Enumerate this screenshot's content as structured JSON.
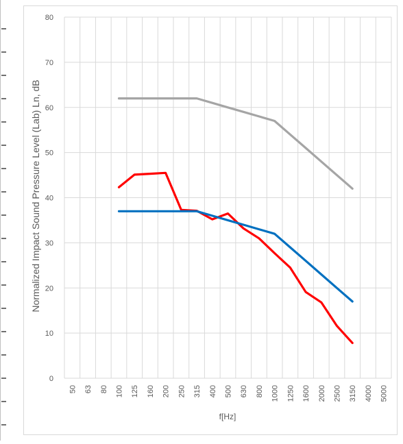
{
  "chart_data": {
    "type": "line",
    "title": "",
    "xlabel": "f[Hz]",
    "ylabel": "Normalized Impact Sound Pressure Level (Lab) Ln, dB",
    "categories": [
      "50",
      "63",
      "80",
      "100",
      "125",
      "160",
      "200",
      "250",
      "315",
      "400",
      "500",
      "630",
      "800",
      "1000",
      "1250",
      "1600",
      "2000",
      "2500",
      "3150",
      "4000",
      "5000"
    ],
    "ylim": [
      0,
      80
    ],
    "yticks": [
      0,
      10,
      20,
      30,
      40,
      50,
      60,
      70,
      80
    ],
    "grid": true,
    "legend": "none",
    "series": [
      {
        "color": "#A5A5A5",
        "values": [
          null,
          null,
          null,
          62,
          62,
          62,
          62,
          62,
          62,
          61,
          60,
          59,
          58,
          57,
          54,
          51,
          48,
          45,
          42,
          null,
          null
        ]
      },
      {
        "color": "#FF0000",
        "values": [
          null,
          null,
          null,
          42.3,
          45.1,
          45.3,
          45.5,
          37.3,
          37.1,
          35.2,
          36.5,
          33.2,
          31,
          27.7,
          24.5,
          19.1,
          16.8,
          11.6,
          7.8,
          null,
          null
        ]
      },
      {
        "color": "#0070C0",
        "values": [
          null,
          null,
          null,
          37,
          37,
          37,
          37,
          37,
          37,
          36,
          35,
          34,
          33,
          32,
          29,
          26,
          23,
          20,
          17,
          null,
          null
        ]
      }
    ]
  }
}
